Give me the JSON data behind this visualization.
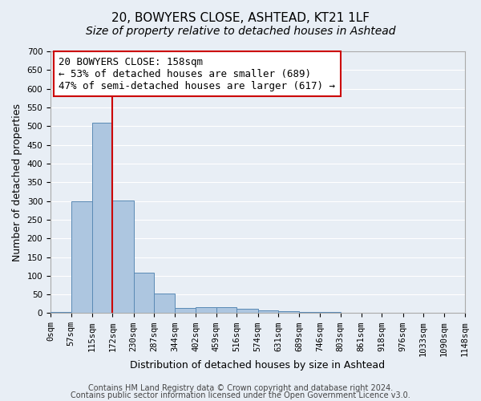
{
  "title": "20, BOWYERS CLOSE, ASHTEAD, KT21 1LF",
  "subtitle": "Size of property relative to detached houses in Ashtead",
  "xlabel": "Distribution of detached houses by size in Ashtead",
  "ylabel": "Number of detached properties",
  "bin_edges": [
    0,
    57,
    115,
    172,
    230,
    287,
    344,
    402,
    459,
    516,
    574,
    631,
    689,
    746,
    803,
    861,
    918,
    976,
    1033,
    1090,
    1148
  ],
  "bar_heights": [
    4,
    300,
    509,
    302,
    108,
    53,
    14,
    15,
    15,
    11,
    7,
    5,
    4,
    3,
    2,
    1,
    1,
    0,
    1,
    2
  ],
  "bar_color": "#adc6e0",
  "bar_edge_color": "#5a8ab5",
  "background_color": "#e8eef5",
  "grid_color": "#ffffff",
  "vline_x": 172,
  "vline_color": "#cc0000",
  "ylim": [
    0,
    650
  ],
  "tick_labels": [
    "0sqm",
    "57sqm",
    "115sqm",
    "172sqm",
    "230sqm",
    "287sqm",
    "344sqm",
    "402sqm",
    "459sqm",
    "516sqm",
    "574sqm",
    "631sqm",
    "689sqm",
    "746sqm",
    "803sqm",
    "861sqm",
    "918sqm",
    "976sqm",
    "1033sqm",
    "1090sqm",
    "1148sqm"
  ],
  "annotation_title": "20 BOWYERS CLOSE: 158sqm",
  "annotation_line1": "← 53% of detached houses are smaller (689)",
  "annotation_line2": "47% of semi-detached houses are larger (617) →",
  "annotation_box_color": "#ffffff",
  "annotation_box_edge_color": "#cc0000",
  "footer1": "Contains HM Land Registry data © Crown copyright and database right 2024.",
  "footer2": "Contains public sector information licensed under the Open Government Licence v3.0.",
  "title_fontsize": 11,
  "subtitle_fontsize": 10,
  "axis_label_fontsize": 9,
  "tick_fontsize": 7.5,
  "annotation_fontsize": 9,
  "footer_fontsize": 7
}
